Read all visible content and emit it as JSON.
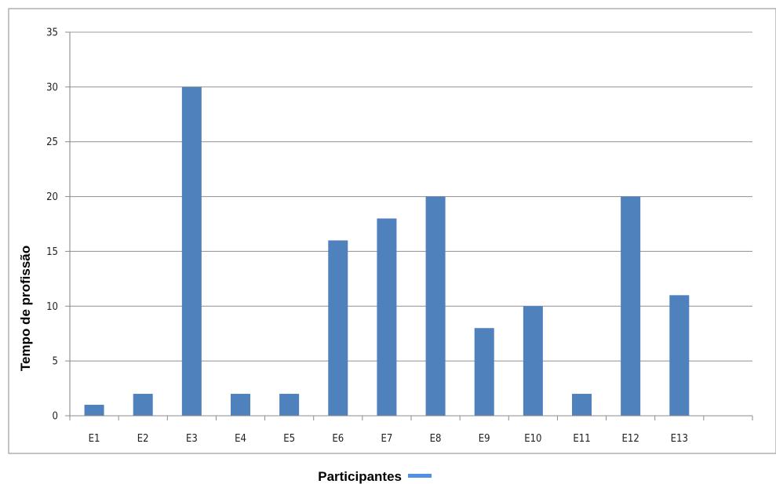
{
  "chart_data": {
    "type": "bar",
    "title": "",
    "xlabel": "Participantes",
    "ylabel": "Tempo de profissão",
    "categories": [
      "E1",
      "E2",
      "E3",
      "E4",
      "E5",
      "E6",
      "E7",
      "E8",
      "E9",
      "E10",
      "E11",
      "E12",
      "E13"
    ],
    "values": [
      1,
      2,
      30,
      2,
      2,
      16,
      18,
      20,
      8,
      10,
      2,
      20,
      11
    ],
    "ylim": [
      0,
      35
    ],
    "yticks": [
      0,
      5,
      10,
      15,
      20,
      25,
      30,
      35
    ],
    "grid": true,
    "legend": "bottom, beside x-axis title",
    "colors": {
      "bar": "#4f81bd",
      "legend_swatch": "#4f8fe6",
      "grid": "#9c9c9c",
      "axis": "#8c8c8c",
      "frame": "#9c9c9c"
    }
  }
}
